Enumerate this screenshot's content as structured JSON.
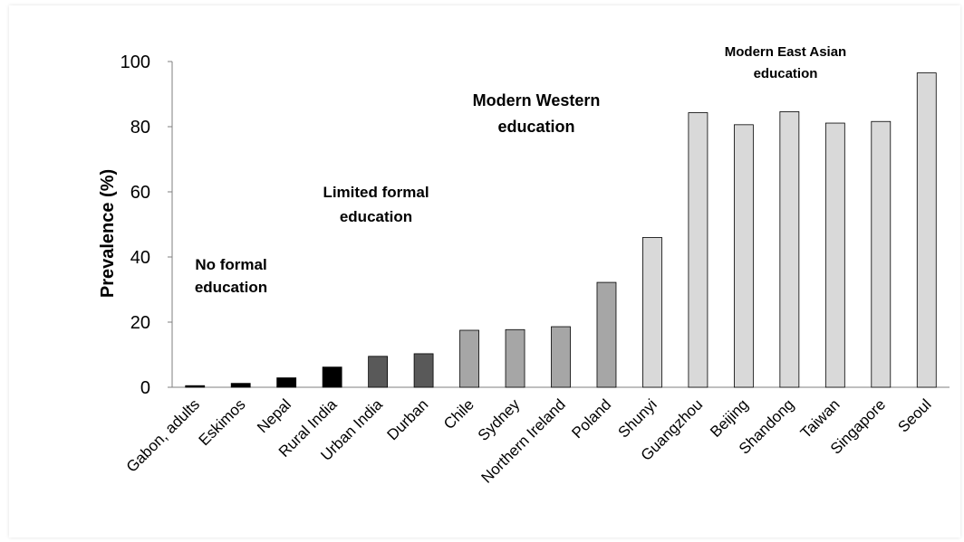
{
  "chart_data": {
    "type": "bar",
    "title": "",
    "xlabel": "",
    "ylabel": "Prevalence (%)",
    "ylim": [
      0,
      100
    ],
    "yticks": [
      0,
      20,
      40,
      60,
      80,
      100
    ],
    "grid": false,
    "legend": "none",
    "categories": [
      "Gabon, adults",
      "Eskimos",
      "Nepal",
      "Rural India",
      "Urban India",
      "Durban",
      "Chile",
      "Sydney",
      "Northern Ireland",
      "Poland",
      "Shunyi",
      "Guangzhou",
      "Beijing",
      "Shandong",
      "Taiwan",
      "Singapore",
      "Seoul"
    ],
    "values": [
      0.5,
      1.2,
      2.9,
      6.2,
      9.5,
      10.3,
      17.5,
      17.7,
      18.6,
      32.2,
      46.0,
      84.3,
      80.6,
      84.6,
      81.1,
      81.6,
      96.5
    ],
    "groups": [
      0,
      0,
      0,
      0,
      1,
      1,
      2,
      2,
      2,
      2,
      3,
      3,
      3,
      3,
      3,
      3,
      3
    ],
    "group_colors": [
      "#000000",
      "#595959",
      "#a6a6a6",
      "#d9d9d9"
    ],
    "annotations": [
      {
        "lines": [
          "No formal",
          "education"
        ]
      },
      {
        "lines": [
          "Limited formal",
          "education"
        ]
      },
      {
        "lines": [
          "Modern Western",
          "education"
        ]
      },
      {
        "lines": [
          "Modern East Asian",
          "education"
        ]
      }
    ]
  }
}
